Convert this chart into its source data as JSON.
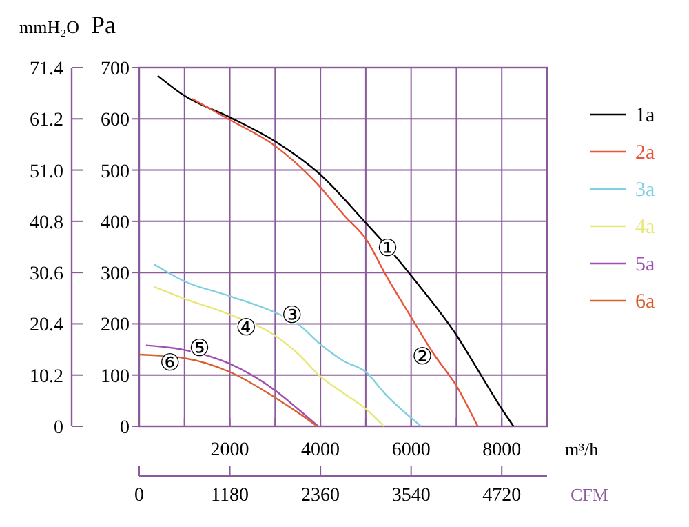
{
  "chart_data": {
    "type": "line",
    "xlabel": "m³/h",
    "ylabel": "Pa",
    "y2label": "mmH₂O",
    "x2label": "CFM",
    "xlim": [
      0,
      9000
    ],
    "xticks": [
      {
        "value": 1000,
        "label": null
      },
      2000,
      {
        "value": 3000,
        "label": null
      },
      4000,
      {
        "value": 5000,
        "label": null
      },
      6000,
      {
        "value": 7000,
        "label": null
      },
      8000
    ],
    "ylim": [
      0,
      700
    ],
    "yticks": [
      0,
      100,
      200,
      300,
      400,
      500,
      600,
      700
    ],
    "y2lim": [
      0,
      71.4
    ],
    "y2ticks": [
      0,
      10.2,
      20.4,
      30.6,
      40.8,
      {
        "value": 51,
        "label": "51.0"
      },
      61.2,
      71.4
    ],
    "x2lim": [
      0,
      5310
    ],
    "x2ticks": [
      0,
      1180,
      2360,
      3540,
      4720
    ],
    "grid": true,
    "legend": "right",
    "marker": "none",
    "line_style": "solid",
    "series": [
      {
        "name": "1a",
        "color": "#000000",
        "x": [
          410,
          1000,
          2000,
          3000,
          4000,
          5000,
          5500,
          6000,
          7000,
          7500,
          8000,
          8260
        ],
        "values": [
          684,
          645,
          603,
          556,
          491,
          397,
          348,
          294,
          178,
          106,
          34,
          0
        ]
      },
      {
        "name": "2a",
        "color": "#e8553a",
        "x": [
          1170,
          2000,
          3000,
          3920,
          4540,
          5000,
          5450,
          6000,
          6500,
          7000,
          7470
        ],
        "values": [
          639,
          598,
          547,
          474,
          410,
          366,
          294,
          213,
          141,
          79,
          0
        ]
      },
      {
        "name": "3a",
        "color": "#7fd0e0",
        "x": [
          330,
          1000,
          2000,
          3000,
          3500,
          4000,
          4500,
          5000,
          5450,
          6220
        ],
        "values": [
          316,
          283,
          254,
          222,
          200,
          160,
          128,
          106,
          61,
          0
        ]
      },
      {
        "name": "4a",
        "color": "#e8e87a",
        "x": [
          330,
          1000,
          2000,
          3000,
          3500,
          4000,
          4500,
          5000,
          5400
        ],
        "values": [
          272,
          249,
          218,
          177,
          142,
          97,
          65,
          34,
          0
        ]
      },
      {
        "name": "5a",
        "color": "#a050b0",
        "x": [
          150,
          1000,
          2000,
          3000,
          3500,
          3950
        ],
        "values": [
          158,
          149,
          122,
          70,
          34,
          0
        ]
      },
      {
        "name": "6a",
        "color": "#d86030",
        "x": [
          0,
          1000,
          2000,
          3000,
          3500,
          3930
        ],
        "values": [
          140,
          133,
          106,
          56,
          27,
          0
        ]
      }
    ],
    "annotations": [
      {
        "text": "①",
        "x": 5480,
        "y": 348
      },
      {
        "text": "②",
        "x": 6250,
        "y": 137
      },
      {
        "text": "③",
        "x": 3370,
        "y": 218
      },
      {
        "text": "④",
        "x": 2360,
        "y": 194
      },
      {
        "text": "⑤",
        "x": 1330,
        "y": 154
      },
      {
        "text": "⑥",
        "x": 680,
        "y": 125
      }
    ]
  }
}
